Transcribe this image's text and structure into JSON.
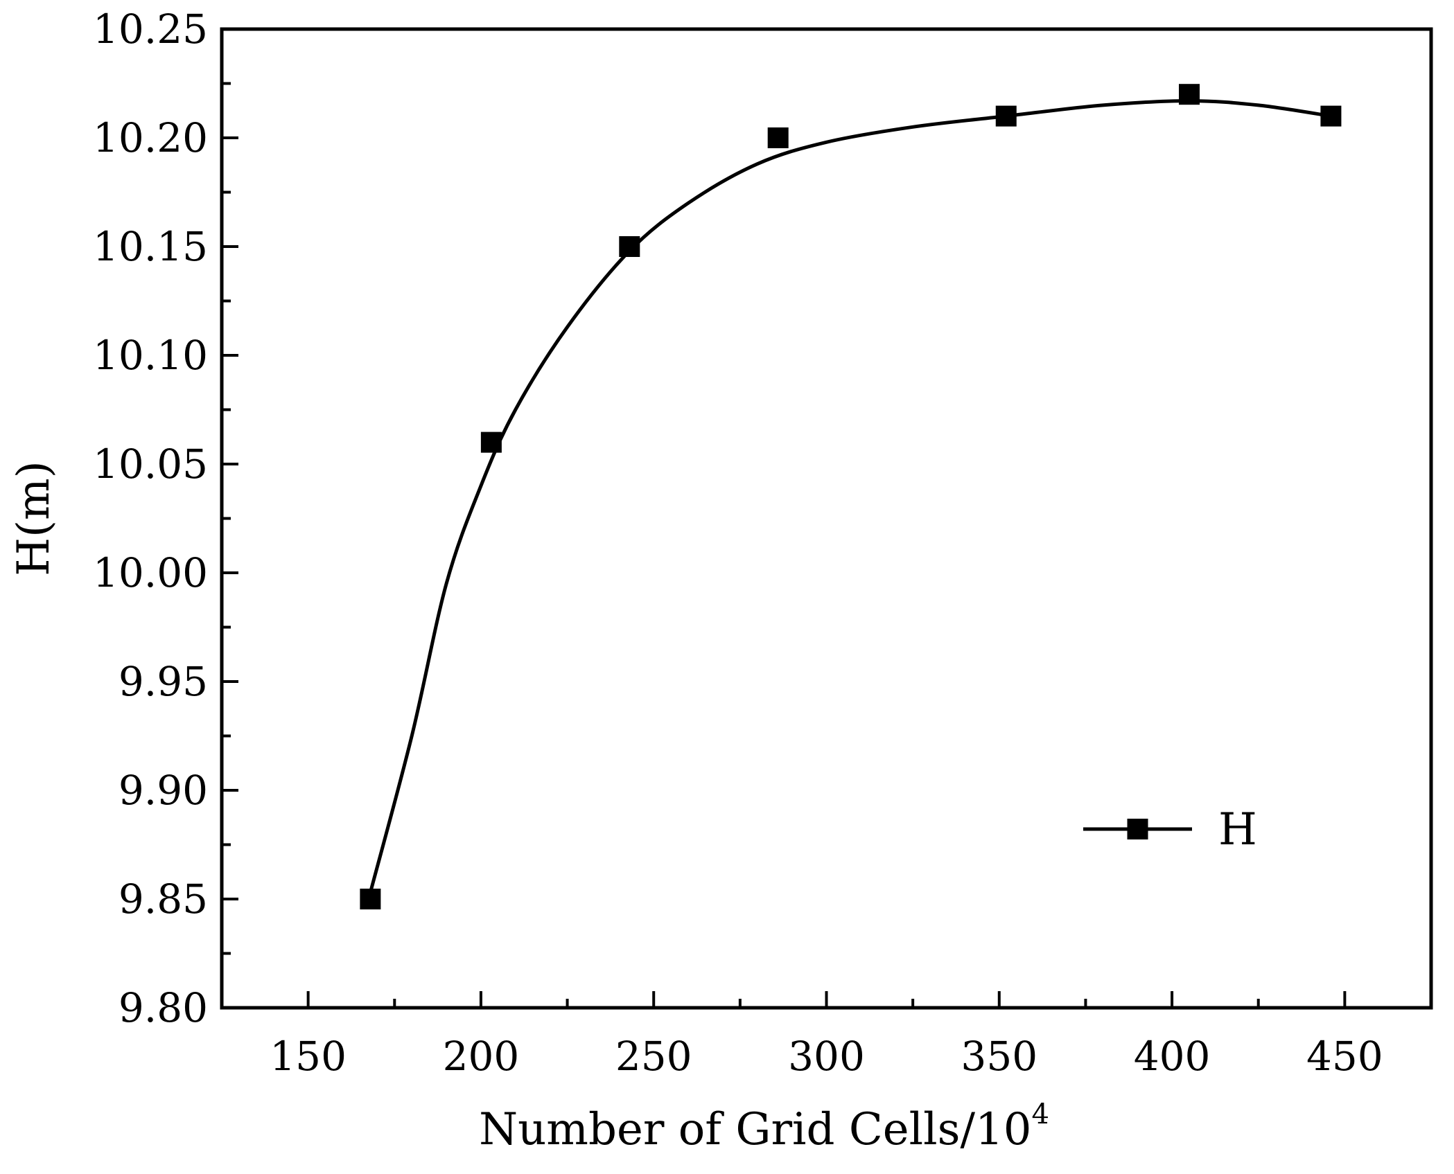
{
  "chart_data": {
    "type": "line",
    "title": "",
    "xlabel": "Number of Grid Cells/10",
    "xlabel_superscript": "4",
    "ylabel": "H(m)",
    "xlim": [
      125,
      475
    ],
    "ylim": [
      9.8,
      10.25
    ],
    "x_ticks": [
      150,
      200,
      250,
      300,
      350,
      400,
      450
    ],
    "x_tick_labels": [
      "150",
      "200",
      "250",
      "300",
      "350",
      "400",
      "450"
    ],
    "y_ticks": [
      9.8,
      9.85,
      9.9,
      9.95,
      10.0,
      10.05,
      10.1,
      10.15,
      10.2,
      10.25
    ],
    "y_tick_labels": [
      "9.80",
      "9.85",
      "9.90",
      "9.95",
      "10.00",
      "10.05",
      "10.10",
      "10.15",
      "10.20",
      "10.25"
    ],
    "grid": false,
    "legend_position": "bottom-right",
    "series": [
      {
        "name": "H",
        "marker": "square",
        "color": "#000000",
        "x": [
          168,
          203,
          243,
          286,
          352,
          405,
          446
        ],
        "y": [
          9.85,
          10.06,
          10.15,
          10.2,
          10.21,
          10.22,
          10.21
        ],
        "fit_curve": [
          [
            168,
            9.853
          ],
          [
            180,
            9.925
          ],
          [
            190,
            9.995
          ],
          [
            200,
            10.04
          ],
          [
            210,
            10.075
          ],
          [
            225,
            10.113
          ],
          [
            243,
            10.148
          ],
          [
            260,
            10.17
          ],
          [
            280,
            10.188
          ],
          [
            300,
            10.198
          ],
          [
            325,
            10.205
          ],
          [
            352,
            10.21
          ],
          [
            380,
            10.215
          ],
          [
            405,
            10.217
          ],
          [
            425,
            10.215
          ],
          [
            446,
            10.21
          ]
        ]
      }
    ]
  }
}
